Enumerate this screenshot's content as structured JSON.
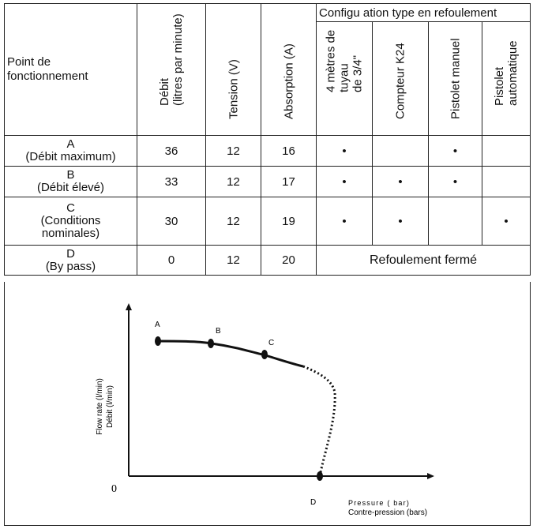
{
  "table": {
    "config_header": "Configu ation type en refoulement",
    "point_header": "Point de\nfonctionnement",
    "col_headers": {
      "debit": "Débit\n(litres par minute)",
      "tension": "Tension (V)",
      "absorption": "Absorption (A)",
      "tuyau": "4 mètres de\ntuyau\nde 3/4\"",
      "compteur": "Compteur K24",
      "pistolet_manuel": "Pistolet manuel",
      "pistolet_auto": "Pistolet\nautomatique"
    },
    "rows": [
      {
        "point": "A\n(Débit maximum)",
        "debit": "36",
        "tension": "12",
        "absorption": "16",
        "tuyau": "•",
        "compteur": "",
        "manuel": "•",
        "auto": ""
      },
      {
        "point": "B\n(Débit élevé)",
        "debit": "33",
        "tension": "12",
        "absorption": "17",
        "tuyau": "•",
        "compteur": "•",
        "manuel": "•",
        "auto": ""
      },
      {
        "point": "C\n(Conditions\nnominales)",
        "debit": "30",
        "tension": "12",
        "absorption": "19",
        "tuyau": "•",
        "compteur": "•",
        "manuel": "",
        "auto": "•"
      },
      {
        "point": "D\n(By pass)",
        "debit": "0",
        "tension": "12",
        "absorption": "20",
        "merged": "Refoulement fermé"
      }
    ]
  },
  "chart": {
    "y_label_en": "Flow rate (l/min)",
    "y_label_fr": "Débit (l/min)",
    "x_label_en": "Pressure ( bar)",
    "x_label_fr": "Contre-pression (bars)",
    "origin_label": "0",
    "point_labels": [
      "A",
      "B",
      "C",
      "D"
    ]
  }
}
